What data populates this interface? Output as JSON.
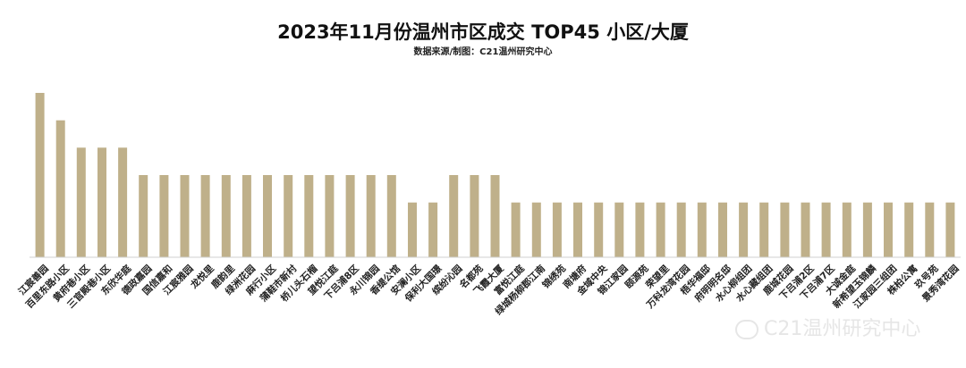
{
  "chart_data": {
    "type": "bar",
    "title": "2023年11月份温州市区成交 TOP45 小区/大厦",
    "subtitle": "数据来源/制图：C21温州研究中心",
    "xlabel": "",
    "ylabel": "",
    "grid": false,
    "legend": "none",
    "ylim": [
      0,
      6
    ],
    "bar_color": "#bfb08a",
    "categories": [
      "江宸善园",
      "百里东路小区",
      "黄府巷小区",
      "三官殿巷小区",
      "东欣华庭",
      "德政嘉园",
      "国信嘉和",
      "江宸雅园",
      "龙悦里",
      "鹿韵里",
      "绿洲花园",
      "麻行小区",
      "蒲鞋市新村",
      "桥儿头石榴",
      "望悦江庭",
      "下吕浦8区",
      "永川锦园",
      "香缇公馆",
      "安澜小区",
      "保利大国璟",
      "缤纷沁园",
      "名都苑",
      "飞霞大厦",
      "富悦江庭",
      "绿城杨柳郡江南",
      "锦绣苑",
      "南塘府",
      "金域中央",
      "锦江家园",
      "颐源苑",
      "荣望里",
      "万科龙湾花园",
      "梧华福邸",
      "府明明名邸",
      "水心柳组团",
      "水心藏组团",
      "鹿城花园",
      "下吕浦2区",
      "下吕浦7区",
      "大诚金庭",
      "新希望玉锦麟",
      "江家园三组团",
      "株柏公寓",
      "玖号苑",
      "景秀湾花园"
    ],
    "values": [
      6,
      5,
      4,
      4,
      4,
      3,
      3,
      3,
      3,
      3,
      3,
      3,
      3,
      3,
      3,
      3,
      3,
      3,
      2,
      2,
      3,
      3,
      3,
      2,
      2,
      2,
      2,
      2,
      2,
      2,
      2,
      2,
      2,
      2,
      2,
      2,
      2,
      2,
      2,
      2,
      2,
      2,
      2,
      2,
      2
    ]
  },
  "watermark": {
    "text": "C21温州研究中心",
    "icon": "wechat-icon"
  }
}
